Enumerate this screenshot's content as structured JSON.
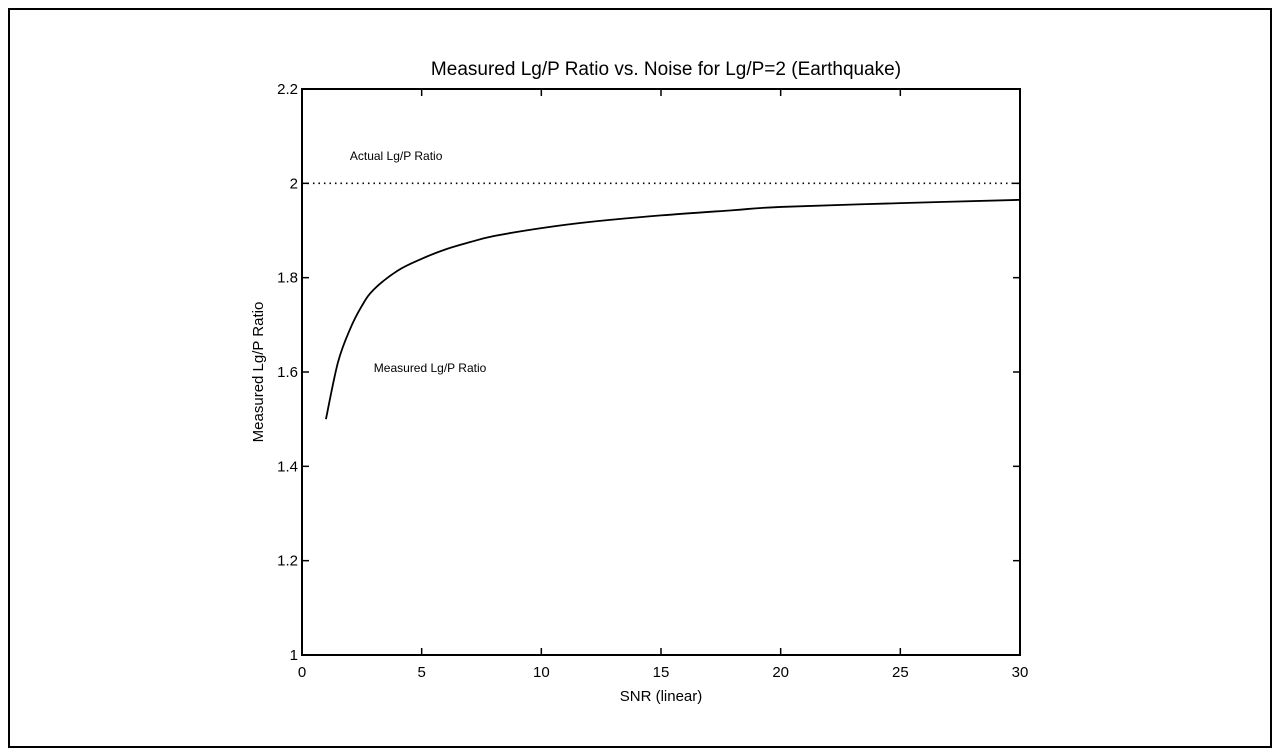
{
  "chart_data": {
    "type": "line",
    "title": "Measured Lg/P Ratio vs. Noise for Lg/P=2 (Earthquake)",
    "xlabel": "SNR (linear)",
    "ylabel": "Measured Lg/P Ratio",
    "xlim": [
      0,
      30
    ],
    "ylim": [
      1,
      2.2
    ],
    "x_ticks": [
      "0",
      "5",
      "10",
      "15",
      "20",
      "25",
      "30"
    ],
    "y_ticks": [
      "1",
      "1.2",
      "1.4",
      "1.6",
      "1.8",
      "2",
      "2.2"
    ],
    "grid": false,
    "series": [
      {
        "name": "Actual Lg/P Ratio",
        "style": "dotted",
        "x": [
          0,
          30
        ],
        "y": [
          2,
          2
        ]
      },
      {
        "name": "Measured Lg/P Ratio",
        "style": "solid",
        "x": [
          1,
          1.5,
          2,
          2.5,
          3,
          4,
          5,
          6,
          7,
          8,
          10,
          12,
          15,
          18,
          20,
          25,
          30
        ],
        "y": [
          1.5,
          1.62,
          1.69,
          1.74,
          1.775,
          1.815,
          1.84,
          1.86,
          1.875,
          1.888,
          1.905,
          1.918,
          1.932,
          1.943,
          1.95,
          1.958,
          1.965
        ]
      }
    ],
    "annotations": [
      {
        "text": "Actual Lg/P Ratio",
        "x": 2,
        "y": 2.05
      },
      {
        "text": "Measured Lg/P Ratio",
        "x": 3,
        "y": 1.6
      }
    ],
    "colors": {
      "line": "#000000",
      "background": "#ffffff"
    }
  }
}
